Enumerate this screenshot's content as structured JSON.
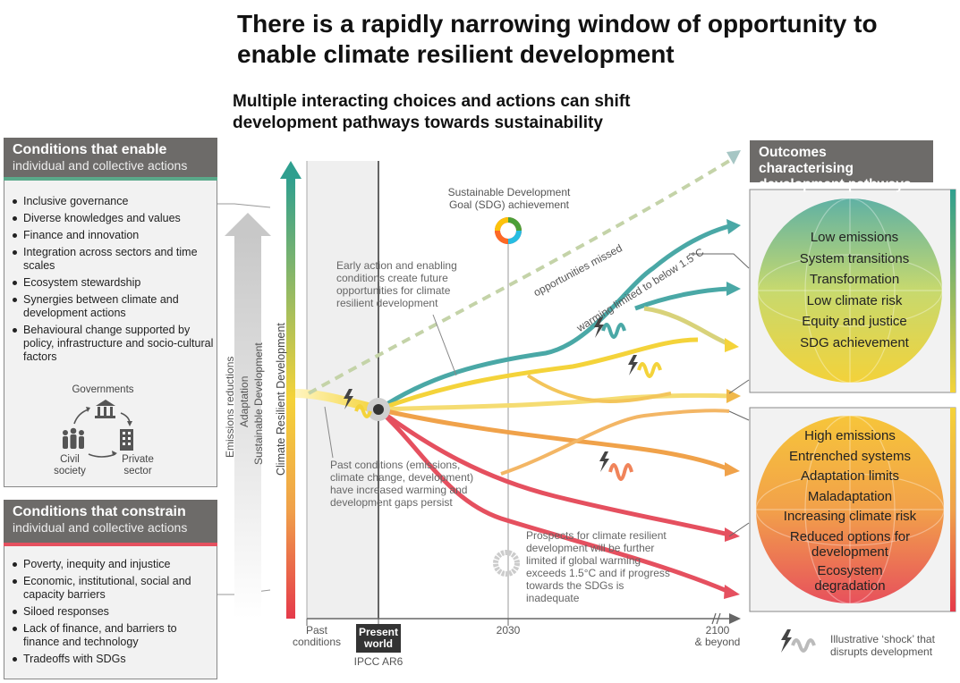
{
  "title": "There is a rapidly narrowing window of opportunity to enable climate resilient development",
  "subtitle": "Multiple interacting choices and actions can shift development pathways towards sustainability",
  "enable": {
    "heading": "Conditions that enable",
    "subheading": "individual and collective actions",
    "items": [
      "Inclusive governance",
      "Diverse knowledges and values",
      "Finance and innovation",
      "Integration across sectors and time scales",
      "Ecosystem stewardship",
      "Synergies between climate and development actions",
      "Behavioural change supported by policy, infrastructure and socio-cultural factors"
    ],
    "actors": {
      "governments": "Governments",
      "civil": "Civil society",
      "private": "Private sector"
    }
  },
  "constrain": {
    "heading": "Conditions that constrain",
    "subheading": "individual and collective actions",
    "items": [
      "Poverty, inequity and injustice",
      "Economic, institutional, social and capacity barriers",
      "Siloed responses",
      "Lack of finance, and barriers to finance and technology",
      "Tradeoffs with SDGs"
    ]
  },
  "vertical_labels": {
    "emissions": "Emissions reductions",
    "adaptation": "Adaptation",
    "sustainable": "Sustainable Development",
    "crd": "Climate Resilient Development"
  },
  "annotations": {
    "sdg": "Sustainable Development Goal (SDG) achievement",
    "early": "Early action and enabling conditions create future opportunities for climate resilient development",
    "missed": "opportunities missed",
    "warming": "warming limited to below 1.5°C",
    "past": "Past conditions (emissions, climate change, development) have increased warming and development gaps persist",
    "prospects": "Prospects for climate resilient development will be further limited if global warming exceeds 1.5°C and if progress towards the SDGs is inadequate"
  },
  "axis": {
    "past": "Past conditions",
    "present_line1": "Present",
    "present_line2": "world",
    "ipcc": "IPCC AR6",
    "y2030": "2030",
    "y2100": "2100",
    "beyond": "& beyond"
  },
  "outcomes": {
    "heading": "Outcomes characterising development pathways",
    "positive": [
      "Low emissions",
      "System transitions",
      "Transformation",
      "Low climate risk",
      "Equity and justice",
      "SDG achievement"
    ],
    "negative": [
      "High emissions",
      "Entrenched systems",
      "Adaptation limits",
      "Maladaptation",
      "Increasing climate risk",
      "Reduced options for development",
      "Ecosystem degradation"
    ]
  },
  "legend": {
    "shock": "Illustrative ‘shock’ that disrupts development"
  },
  "colors": {
    "teal": "#4aa8a6",
    "yellow": "#f4d33a",
    "orange": "#f0a24a",
    "red": "#e5505f",
    "header": "#6d6b69"
  }
}
